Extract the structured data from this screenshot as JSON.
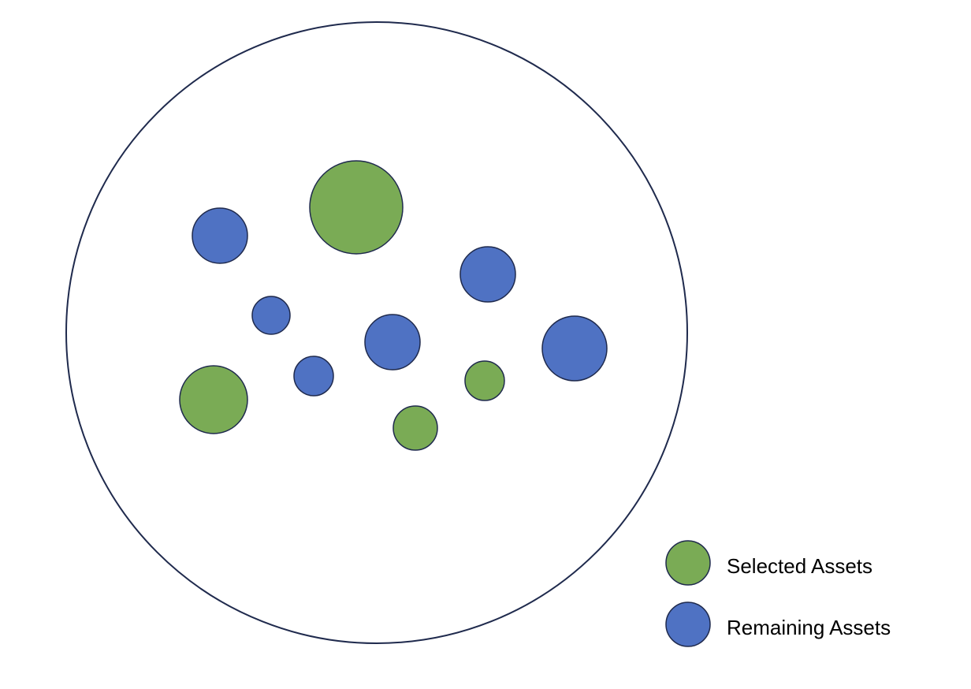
{
  "colors": {
    "selected": "#7aab55",
    "remaining": "#4f72c3",
    "outline": "#1f2a4d",
    "universe_fill": "#ffffff"
  },
  "legend": {
    "selected_label": "Selected Assets",
    "remaining_label": "Remaining Assets"
  },
  "assets": [
    {
      "kind": "remaining"
    },
    {
      "kind": "selected"
    },
    {
      "kind": "remaining"
    },
    {
      "kind": "remaining"
    },
    {
      "kind": "remaining"
    },
    {
      "kind": "remaining"
    },
    {
      "kind": "remaining"
    },
    {
      "kind": "selected"
    },
    {
      "kind": "selected"
    },
    {
      "kind": "selected"
    }
  ]
}
